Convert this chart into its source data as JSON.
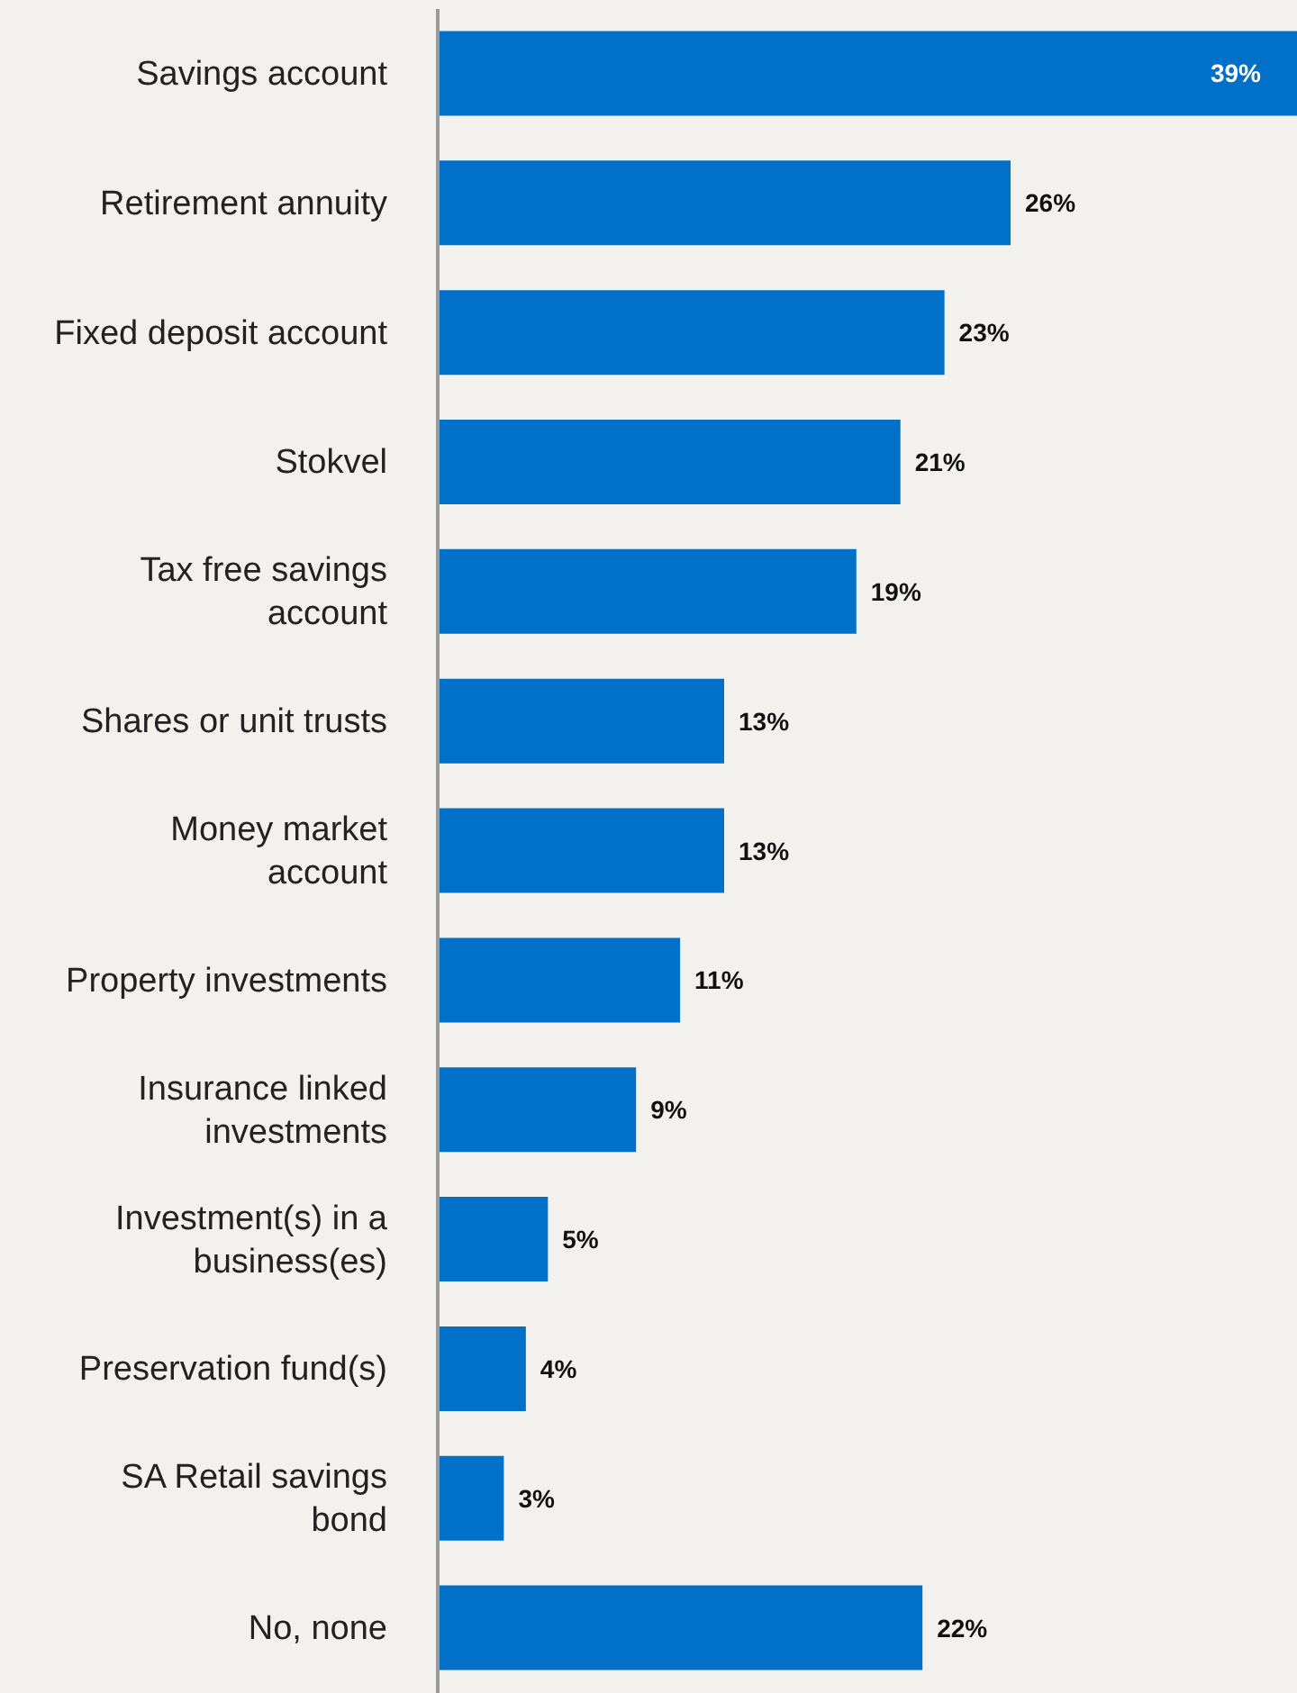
{
  "chart_data": {
    "type": "bar",
    "orientation": "horizontal",
    "categories": [
      "Savings account",
      "Retirement annuity",
      "Fixed deposit account",
      "Stokvel",
      "Tax free savings\naccount",
      "Shares or unit trusts",
      "Money market\naccount",
      "Property investments",
      "Insurance linked\ninvestments",
      "Investment(s) in a\nbusiness(es)",
      "Preservation fund(s)",
      "SA Retail savings\nbond",
      "No, none"
    ],
    "values": [
      39,
      26,
      23,
      21,
      19,
      13,
      13,
      11,
      9,
      5,
      4,
      3,
      22
    ],
    "value_labels": [
      "39%",
      "26%",
      "23%",
      "21%",
      "19%",
      "13%",
      "13%",
      "11%",
      "9%",
      "5%",
      "4%",
      "3%",
      "22%"
    ],
    "color": "#0070c8"
  }
}
